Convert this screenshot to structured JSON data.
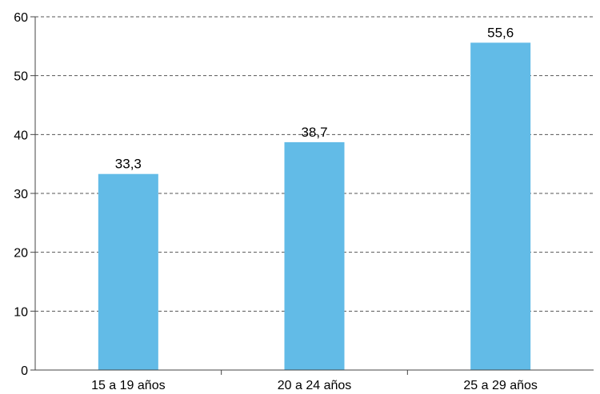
{
  "chart_data": {
    "type": "bar",
    "title": "",
    "xlabel": "",
    "ylabel": "",
    "categories": [
      "15 a 19 años",
      "20 a 24 años",
      "25 a 29 años"
    ],
    "values": [
      33.3,
      38.7,
      55.6
    ],
    "data_labels": [
      "33,3",
      "38,7",
      "55,6"
    ],
    "ylim": [
      0,
      60
    ],
    "yticks": [
      0,
      10,
      20,
      30,
      40,
      50,
      60
    ],
    "ytick_labels": [
      "0",
      "10",
      "20",
      "30",
      "40",
      "50",
      "60"
    ],
    "grid": true,
    "legend": "none",
    "bar_color": "#62BBE7",
    "grid_color": "#555555",
    "axis_color": "#444444"
  }
}
